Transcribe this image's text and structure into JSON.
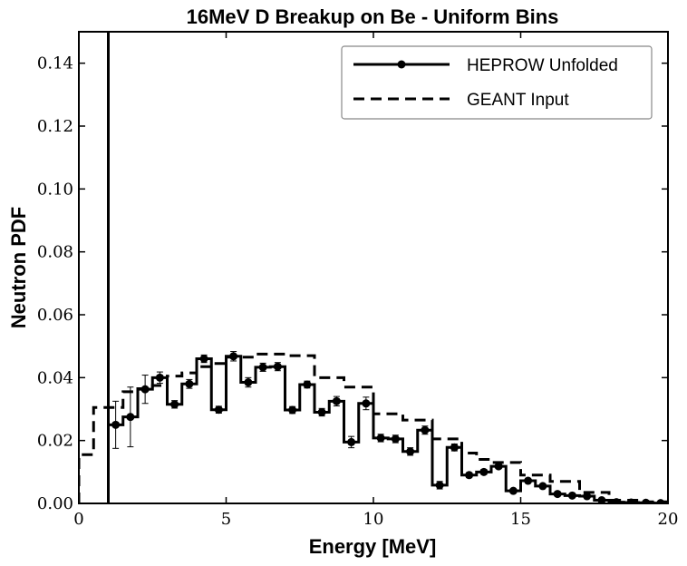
{
  "chart_data": {
    "type": "line",
    "title": "16MeV D Breakup on Be - Uniform Bins",
    "xlabel": "Energy [MeV]",
    "ylabel": "Neutron PDF",
    "xlim": [
      0,
      20
    ],
    "ylim": [
      0,
      0.15
    ],
    "xticks": [
      0,
      5,
      10,
      15,
      20
    ],
    "xtick_labels": [
      "0",
      "5",
      "10",
      "15",
      "20"
    ],
    "yticks": [
      0.0,
      0.02,
      0.04,
      0.06,
      0.08,
      0.1,
      0.12,
      0.14
    ],
    "ytick_labels": [
      "0.00",
      "0.02",
      "0.04",
      "0.06",
      "0.08",
      "0.10",
      "0.12",
      "0.14"
    ],
    "grid": false,
    "legend_position": "top-right",
    "series": [
      {
        "name": "HEPROW Unfolded",
        "style": "solid-step-with-markers",
        "color": "#000000",
        "bin_edges": [
          1.0,
          1.5,
          2.0,
          2.5,
          3.0,
          3.5,
          4.0,
          4.5,
          5.0,
          5.5,
          6.0,
          6.5,
          7.0,
          7.5,
          8.0,
          8.5,
          9.0,
          9.5,
          10.0,
          10.5,
          11.0,
          11.5,
          12.0,
          12.5,
          13.0,
          13.5,
          14.0,
          14.5,
          15.0,
          15.5,
          16.0,
          16.5,
          17.0,
          17.5,
          18.0,
          18.5,
          19.0,
          19.5,
          20.0
        ],
        "values": [
          0.025,
          0.0275,
          0.0363,
          0.04,
          0.0315,
          0.038,
          0.046,
          0.0298,
          0.0468,
          0.0385,
          0.0433,
          0.0435,
          0.0297,
          0.0378,
          0.029,
          0.0325,
          0.0195,
          0.0318,
          0.0208,
          0.0205,
          0.0165,
          0.0233,
          0.0058,
          0.0178,
          0.009,
          0.01,
          0.0118,
          0.004,
          0.0072,
          0.0055,
          0.003,
          0.0025,
          0.0023,
          0.001,
          0.0004,
          0.0003,
          0.0002,
          0.0001
        ],
        "errors": [
          0.0075,
          0.0095,
          0.0045,
          0.0018,
          0.0012,
          0.0014,
          0.0012,
          0.0011,
          0.0015,
          0.0015,
          0.0013,
          0.0013,
          0.0011,
          0.0011,
          0.0012,
          0.0015,
          0.0018,
          0.002,
          0.0012,
          0.0012,
          0.0012,
          0.0013,
          0.0012,
          0.0011,
          0.0008,
          0.0008,
          0.0007,
          0.0006,
          0.0006,
          0.0006,
          0.0005,
          0.0004,
          0.0003,
          0.0003,
          0.0002,
          0.0002,
          0.0001,
          0.0001
        ],
        "spike": {
          "x": 1.0,
          "y_top": 0.15
        }
      },
      {
        "name": "GEANT Input",
        "style": "dashed-step",
        "color": "#000000",
        "bin_edges": [
          0.0,
          0.5,
          1.0,
          1.5,
          2.0,
          2.5,
          3.0,
          3.5,
          4.0,
          4.5,
          5.0,
          5.5,
          6.0,
          6.5,
          7.0,
          7.5,
          8.0,
          8.5,
          9.0,
          9.5,
          10.0,
          10.5,
          11.0,
          11.5,
          12.0,
          12.5,
          13.0,
          13.5,
          14.0,
          14.5,
          15.0,
          15.5,
          16.0,
          16.5,
          17.0,
          17.5,
          18.0,
          18.5,
          19.0,
          19.5,
          20.0
        ],
        "values": [
          0.0155,
          0.0305,
          0.0305,
          0.0355,
          0.0365,
          0.0375,
          0.0405,
          0.0415,
          0.0435,
          0.0445,
          0.0465,
          0.0465,
          0.0475,
          0.0475,
          0.047,
          0.047,
          0.04,
          0.04,
          0.037,
          0.037,
          0.0285,
          0.0285,
          0.0265,
          0.0265,
          0.0205,
          0.0205,
          0.016,
          0.014,
          0.013,
          0.013,
          0.009,
          0.009,
          0.007,
          0.007,
          0.0035,
          0.0035,
          0.001,
          0.001,
          0.0005,
          0.0005
        ]
      }
    ]
  }
}
